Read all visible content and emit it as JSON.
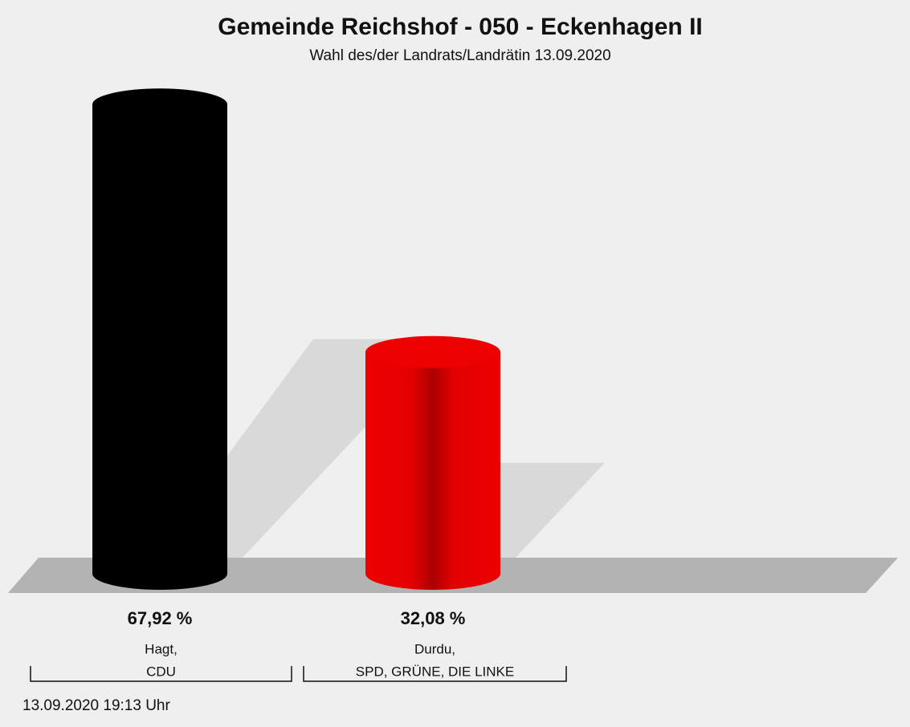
{
  "chart_data": {
    "type": "bar",
    "title": "Gemeinde Reichshof - 050 - Eckenhagen II",
    "subtitle": "Wahl des/der Landrats/Landrätin 13.09.2020",
    "categories": [
      [
        "Hagt,",
        "CDU"
      ],
      [
        "Durdu,",
        "SPD, GRÜNE, DIE LINKE"
      ]
    ],
    "values": [
      67.92,
      32.08
    ],
    "value_labels": [
      "67,92 %",
      "32,08 %"
    ],
    "colors": [
      "#000000",
      "#ee0000"
    ],
    "footer": "13.09.2020 19:13 Uhr"
  }
}
